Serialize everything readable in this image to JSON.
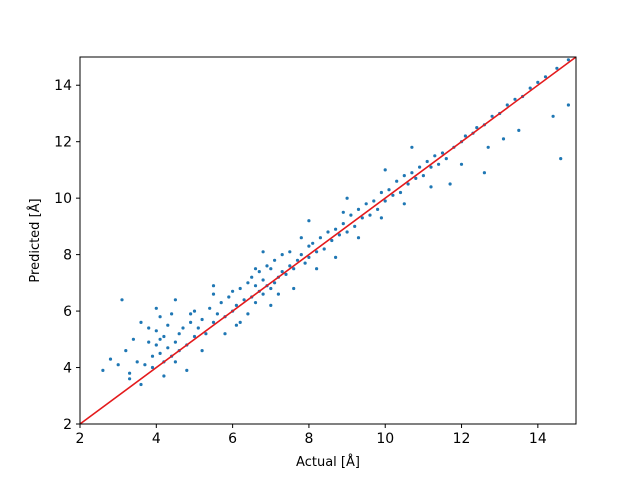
{
  "chart_data": {
    "type": "scatter",
    "title": "",
    "xlabel": "Actual [Å]",
    "ylabel": "Predicted [Å]",
    "xlim": [
      2,
      15
    ],
    "ylim": [
      2,
      15
    ],
    "xticks": [
      2,
      4,
      6,
      8,
      10,
      12,
      14
    ],
    "yticks": [
      2,
      4,
      6,
      8,
      10,
      12,
      14
    ],
    "grid": false,
    "legend": "none",
    "colors": {
      "points": "#1f77b4",
      "reference_line": "#e41a1c",
      "axes": "#000000"
    },
    "reference_line": {
      "x": [
        2,
        15
      ],
      "y": [
        2,
        15
      ]
    },
    "series": [
      {
        "marker": "dot",
        "x": [
          2.6,
          2.8,
          3.0,
          3.1,
          3.2,
          3.3,
          3.4,
          3.5,
          3.6,
          3.7,
          3.8,
          3.9,
          4.0,
          4.0,
          4.1,
          4.1,
          4.2,
          4.2,
          4.3,
          4.3,
          4.4,
          4.4,
          4.5,
          4.6,
          4.6,
          4.7,
          4.8,
          4.9,
          5.0,
          5.0,
          5.1,
          5.2,
          5.3,
          5.4,
          5.5,
          5.5,
          5.6,
          5.7,
          5.8,
          5.9,
          6.0,
          6.0,
          6.1,
          6.2,
          6.2,
          6.3,
          6.4,
          6.4,
          6.5,
          6.5,
          6.6,
          6.6,
          6.7,
          6.7,
          6.8,
          6.8,
          6.9,
          6.9,
          7.0,
          7.0,
          7.1,
          7.1,
          7.2,
          7.2,
          7.3,
          7.3,
          7.4,
          7.5,
          7.5,
          7.6,
          7.7,
          7.8,
          7.9,
          8.0,
          8.0,
          8.1,
          8.2,
          8.3,
          8.4,
          8.5,
          8.6,
          8.7,
          8.8,
          8.9,
          9.0,
          9.1,
          9.2,
          9.3,
          9.4,
          9.5,
          9.6,
          9.7,
          9.8,
          9.9,
          10.0,
          10.1,
          10.2,
          10.3,
          10.4,
          10.5,
          10.6,
          10.7,
          10.8,
          10.9,
          11.0,
          11.1,
          11.2,
          11.3,
          11.4,
          11.5,
          11.6,
          11.8,
          12.0,
          12.1,
          12.3,
          12.4,
          12.6,
          12.8,
          13.0,
          13.2,
          13.4,
          13.6,
          13.8,
          14.0,
          14.2,
          14.5,
          14.8,
          3.3,
          3.6,
          3.9,
          4.2,
          4.5,
          4.8,
          5.2,
          5.8,
          6.1,
          7.0,
          7.6,
          8.2,
          8.7,
          9.3,
          9.9,
          10.5,
          11.2,
          12.0,
          12.7,
          13.5,
          14.4,
          14.8,
          4.0,
          4.5,
          5.5,
          6.8,
          8.0,
          9.0,
          10.0,
          11.7,
          12.6,
          13.1,
          14.6,
          3.8,
          4.1,
          4.9,
          6.6,
          7.8,
          8.9,
          10.7
        ],
        "y": [
          3.9,
          4.3,
          4.1,
          6.4,
          4.6,
          3.8,
          5.0,
          4.2,
          5.6,
          4.1,
          4.9,
          4.4,
          4.8,
          5.3,
          4.5,
          5.8,
          4.2,
          5.1,
          4.7,
          5.5,
          4.4,
          5.9,
          4.9,
          5.2,
          4.6,
          5.4,
          4.8,
          5.6,
          5.1,
          6.0,
          5.4,
          5.7,
          5.2,
          6.1,
          5.6,
          6.6,
          5.9,
          6.3,
          5.8,
          6.5,
          6.0,
          6.7,
          6.2,
          5.6,
          6.8,
          6.4,
          5.9,
          7.0,
          6.5,
          7.2,
          6.3,
          6.9,
          6.7,
          7.4,
          6.6,
          7.1,
          6.9,
          7.6,
          6.8,
          7.5,
          7.0,
          7.8,
          7.2,
          6.6,
          7.4,
          8.0,
          7.3,
          7.6,
          8.1,
          7.5,
          7.8,
          8.0,
          7.7,
          8.3,
          7.9,
          8.4,
          8.1,
          8.6,
          8.2,
          8.8,
          8.5,
          8.9,
          8.7,
          9.1,
          8.8,
          9.4,
          9.0,
          9.6,
          9.3,
          9.8,
          9.4,
          9.9,
          9.6,
          10.2,
          9.9,
          10.3,
          10.1,
          10.6,
          10.2,
          10.8,
          10.5,
          10.9,
          10.7,
          11.1,
          10.8,
          11.3,
          11.1,
          11.5,
          11.2,
          11.6,
          11.4,
          11.8,
          12.0,
          12.2,
          12.3,
          12.5,
          12.6,
          12.9,
          13.0,
          13.3,
          13.5,
          13.6,
          13.9,
          14.1,
          14.3,
          14.6,
          14.9,
          3.6,
          3.4,
          4.0,
          3.7,
          4.2,
          3.9,
          4.6,
          5.2,
          5.5,
          6.2,
          6.8,
          7.5,
          7.9,
          8.6,
          9.3,
          9.8,
          10.4,
          11.2,
          11.8,
          12.4,
          12.9,
          13.3,
          6.1,
          6.4,
          6.9,
          8.1,
          9.2,
          10.0,
          11.0,
          10.5,
          10.9,
          12.1,
          11.4,
          5.4,
          5.0,
          5.9,
          7.5,
          8.6,
          9.5,
          11.8
        ]
      }
    ]
  }
}
